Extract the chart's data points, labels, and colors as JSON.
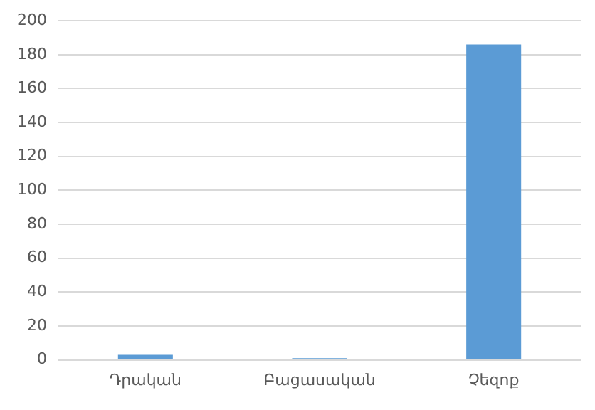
{
  "chart_data": {
    "type": "bar",
    "categories": [
      "Դրական",
      "Բացասական",
      "Չեզոք"
    ],
    "values": [
      3,
      1,
      186
    ],
    "color": "#5b9bd5",
    "ylim": [
      0,
      200
    ],
    "yticks": [
      0,
      20,
      40,
      60,
      80,
      100,
      120,
      140,
      160,
      180,
      200
    ],
    "grid": "y",
    "legend": false
  }
}
